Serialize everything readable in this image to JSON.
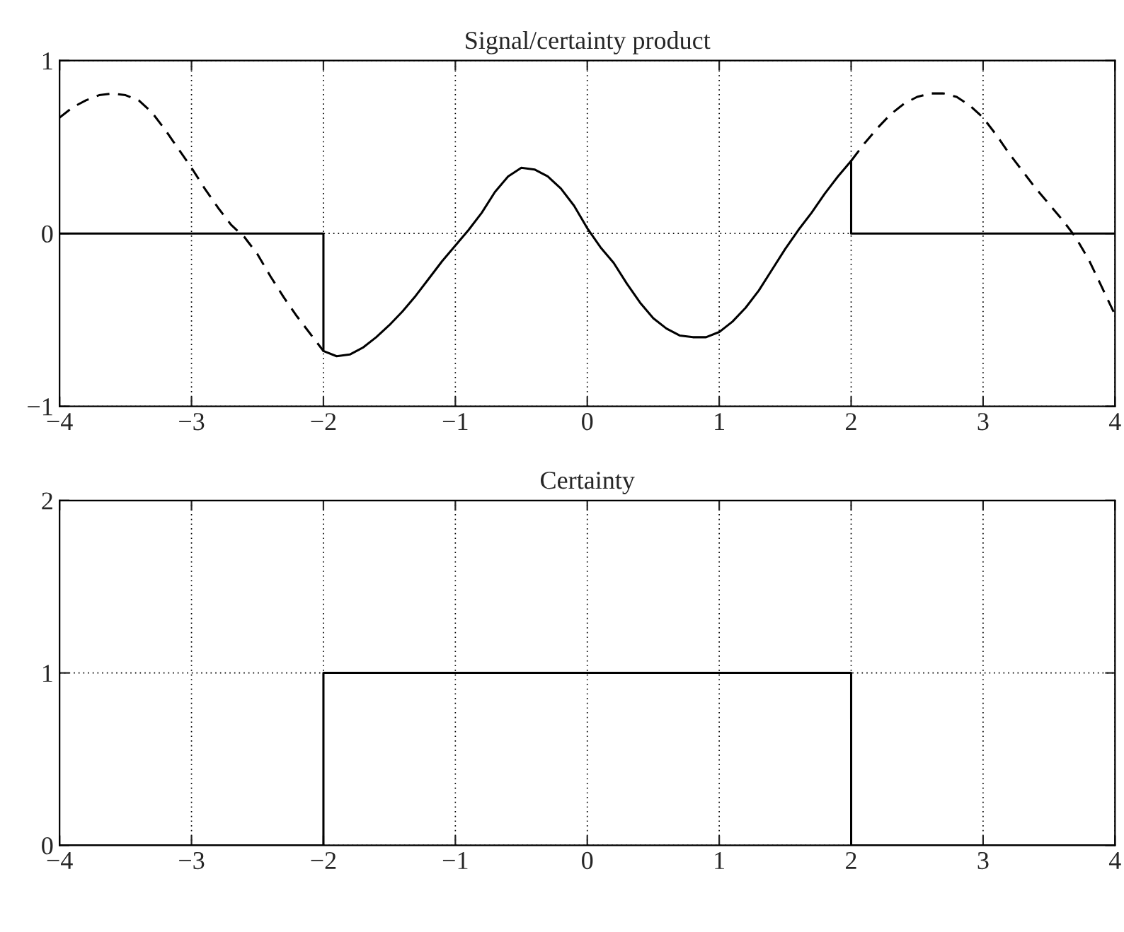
{
  "chart_data": [
    {
      "type": "line",
      "title": "Signal/certainty product",
      "xlim": [
        -4,
        4
      ],
      "ylim": [
        -1,
        1
      ],
      "xticks": [
        {
          "value": -4,
          "label": "−4"
        },
        {
          "value": -3,
          "label": "−3"
        },
        {
          "value": -2,
          "label": "−2"
        },
        {
          "value": -1,
          "label": "−1"
        },
        0,
        1,
        2,
        3,
        4
      ],
      "yticks": [
        {
          "value": -1,
          "label": "−1"
        },
        0,
        1
      ],
      "grid": true,
      "series": [
        {
          "color": "#000000",
          "line_style": "dashed",
          "x": [
            -4,
            -3.9,
            -3.8,
            -3.7,
            -3.6,
            -3.5,
            -3.4,
            -3.3,
            -3.2,
            -3.1,
            -3.0,
            -2.9,
            -2.8,
            -2.7,
            -2.6,
            -2.5,
            -2.4,
            -2.3,
            -2.2,
            -2.1,
            -2.0
          ],
          "values": [
            0.67,
            0.73,
            0.77,
            0.8,
            0.81,
            0.8,
            0.77,
            0.7,
            0.6,
            0.49,
            0.38,
            0.26,
            0.15,
            0.05,
            -0.02,
            -0.12,
            -0.25,
            -0.37,
            -0.48,
            -0.58,
            -0.68
          ]
        },
        {
          "color": "#000000",
          "line_style": "dashed",
          "x": [
            2.0,
            2.1,
            2.2,
            2.3,
            2.4,
            2.5,
            2.6,
            2.7,
            2.8,
            2.9,
            3.0,
            3.1,
            3.2,
            3.3,
            3.4,
            3.5,
            3.6,
            3.7,
            3.8,
            3.9,
            4.0
          ],
          "values": [
            0.42,
            0.52,
            0.61,
            0.69,
            0.75,
            0.79,
            0.81,
            0.81,
            0.79,
            0.74,
            0.67,
            0.57,
            0.46,
            0.36,
            0.26,
            0.17,
            0.08,
            -0.02,
            -0.15,
            -0.31,
            -0.47
          ]
        },
        {
          "color": "#000000",
          "line_style": "solid",
          "x": [
            -4,
            -2,
            -2,
            -1.9,
            -1.8,
            -1.7,
            -1.6,
            -1.5,
            -1.4,
            -1.3,
            -1.2,
            -1.1,
            -1.0,
            -0.9,
            -0.8,
            -0.7,
            -0.6,
            -0.5,
            -0.4,
            -0.3,
            -0.2,
            -0.1,
            0,
            0.1,
            0.2,
            0.3,
            0.4,
            0.5,
            0.6,
            0.7,
            0.8,
            0.9,
            1.0,
            1.1,
            1.2,
            1.3,
            1.4,
            1.5,
            1.6,
            1.7,
            1.8,
            1.9,
            2.0,
            2.0,
            4
          ],
          "values": [
            0,
            0,
            -0.68,
            -0.71,
            -0.7,
            -0.66,
            -0.6,
            -0.53,
            -0.45,
            -0.36,
            -0.26,
            -0.16,
            -0.07,
            0.02,
            0.12,
            0.24,
            0.33,
            0.38,
            0.37,
            0.33,
            0.26,
            0.16,
            0.03,
            -0.08,
            -0.17,
            -0.29,
            -0.4,
            -0.49,
            -0.55,
            -0.59,
            -0.6,
            -0.6,
            -0.57,
            -0.51,
            -0.43,
            -0.33,
            -0.21,
            -0.09,
            0.02,
            0.12,
            0.23,
            0.33,
            0.42,
            0,
            0
          ]
        }
      ]
    },
    {
      "type": "line",
      "title": "Certainty",
      "xlim": [
        -4,
        4
      ],
      "ylim": [
        0,
        2
      ],
      "xticks": [
        {
          "value": -4,
          "label": "−4"
        },
        {
          "value": -3,
          "label": "−3"
        },
        {
          "value": -2,
          "label": "−2"
        },
        {
          "value": -1,
          "label": "−1"
        },
        0,
        1,
        2,
        3,
        4
      ],
      "yticks": [
        0,
        1,
        2
      ],
      "grid": true,
      "series": [
        {
          "color": "#000000",
          "line_style": "solid",
          "x": [
            -4,
            -2,
            -2,
            2,
            2,
            4
          ],
          "values": [
            0,
            0,
            1,
            1,
            0,
            0
          ]
        }
      ]
    }
  ]
}
